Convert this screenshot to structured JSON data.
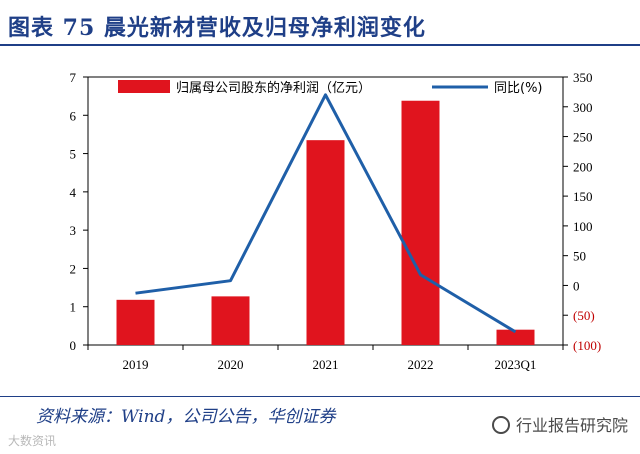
{
  "header": {
    "title": "图表 75 晨光新材营收及归母净利润变化"
  },
  "footer": {
    "source": "资料来源：Wind，公司公告，华创证券",
    "watermark_left": "大数资讯",
    "watermark_right": "行业报告研究院"
  },
  "colors": {
    "bar": "#e0141e",
    "line": "#1f5fa8",
    "axis_right_negative": "#c00000",
    "title": "#1f3f87"
  },
  "chart_data": {
    "type": "bar",
    "categories": [
      "2019",
      "2020",
      "2021",
      "2022",
      "2023Q1"
    ],
    "series": [
      {
        "name": "归属母公司股东的净利润（亿元）",
        "type": "bar",
        "axis": "left",
        "values": [
          1.18,
          1.27,
          5.35,
          6.38,
          0.4
        ]
      },
      {
        "name": "同比(%)",
        "type": "line",
        "axis": "right",
        "values": [
          -13,
          8,
          320,
          18,
          -78
        ]
      }
    ],
    "left_axis": {
      "ylim": [
        0,
        7
      ],
      "ticks": [
        "0",
        "1",
        "2",
        "3",
        "4",
        "5",
        "6",
        "7"
      ]
    },
    "right_axis": {
      "ylim": [
        -100,
        350
      ],
      "ticks": [
        "(100)",
        "(50)",
        "0",
        "50",
        "100",
        "150",
        "200",
        "250",
        "300",
        "350"
      ]
    },
    "legend": "top"
  }
}
